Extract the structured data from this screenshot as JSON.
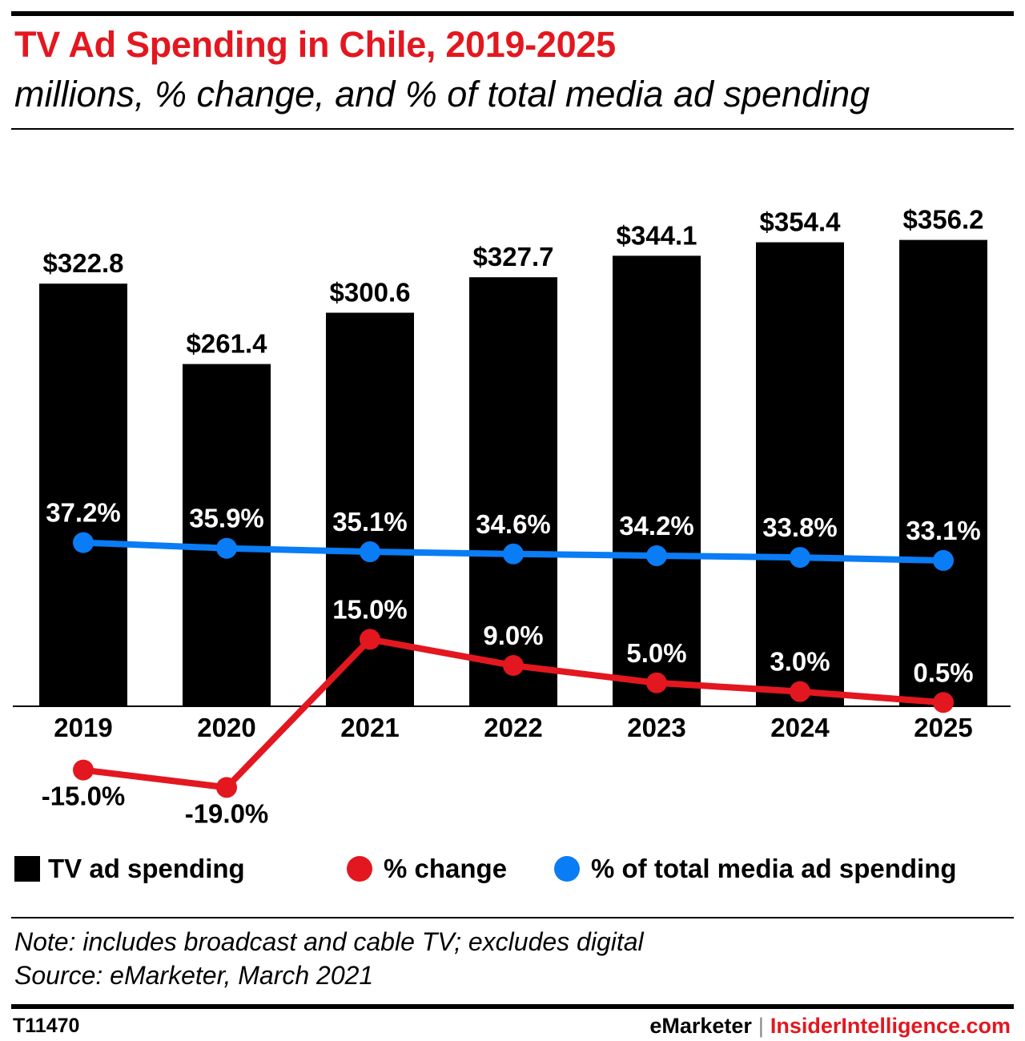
{
  "header": {
    "title": "TV Ad Spending in Chile, 2019-2025",
    "subtitle": "millions, % change, and % of total media ad spending"
  },
  "legend": {
    "spending": "TV ad spending",
    "change": "% change",
    "share": "% of total media ad spending"
  },
  "footer": {
    "note": "Note: includes broadcast and cable TV; excludes digital",
    "source": "Source: eMarketer, March 2021",
    "chart_id": "T11470",
    "brand_left": "eMarketer",
    "brand_sep": "|",
    "brand_right": "InsiderIntelligence.com"
  },
  "colors": {
    "title": "#e3171f",
    "bars": "#000000",
    "change_line": "#e3171f",
    "share_line": "#0a7cf5"
  },
  "chart_data": {
    "type": "bar",
    "categories": [
      "2019",
      "2020",
      "2021",
      "2022",
      "2023",
      "2024",
      "2025"
    ],
    "series": [
      {
        "name": "TV ad spending",
        "type": "bar",
        "values": [
          322.8,
          261.4,
          300.6,
          327.7,
          344.1,
          354.4,
          356.2
        ],
        "labels": [
          "$322.8",
          "$261.4",
          "$300.6",
          "$327.7",
          "$344.1",
          "$354.4",
          "$356.2"
        ]
      },
      {
        "name": "% change",
        "type": "line",
        "values": [
          -15.0,
          -19.0,
          15.0,
          9.0,
          5.0,
          3.0,
          0.5
        ],
        "labels": [
          "-15.0%",
          "-19.0%",
          "15.0%",
          "9.0%",
          "5.0%",
          "3.0%",
          "0.5%"
        ]
      },
      {
        "name": "% of total media ad spending",
        "type": "line",
        "values": [
          37.2,
          35.9,
          35.1,
          34.6,
          34.2,
          33.8,
          33.1
        ],
        "labels": [
          "37.2%",
          "35.9%",
          "35.1%",
          "34.6%",
          "34.2%",
          "33.8%",
          "33.1%"
        ]
      }
    ],
    "bar_ylim": [
      0,
      400
    ],
    "pct_ylim": [
      -30,
      50
    ],
    "grid": false
  }
}
